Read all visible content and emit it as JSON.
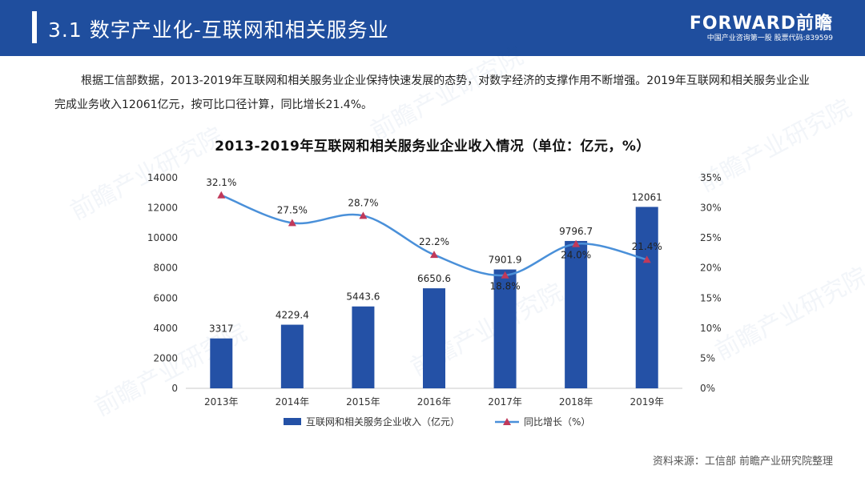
{
  "header": {
    "title": "3.1 数字产业化-互联网和相关服务业",
    "logo_main": "FORWARD前瞻",
    "logo_sub": "中国产业咨询第一股 股票代码:839599"
  },
  "intro": "根据工信部数据，2013-2019年互联网和相关服务业企业保持快速发展的态势，对数字经济的支撑作用不断增强。2019年互联网和相关服务业企业完成业务收入12061亿元，按可比口径计算，同比增长21.4%。",
  "source": "资料来源：工信部 前瞻产业研究院整理",
  "watermark": "前瞻产业研究院",
  "colors": {
    "header": "#1F4E9E",
    "bar": "#2451A6",
    "line": "#4A90D9",
    "marker": "#C0395A"
  },
  "chart_data": {
    "type": "bar",
    "title": "2013-2019年互联网和相关服务业企业收入情况（单位：亿元，%）",
    "categories": [
      "2013年",
      "2014年",
      "2015年",
      "2016年",
      "2017年",
      "2018年",
      "2019年"
    ],
    "series": [
      {
        "name": "互联网和相关服务企业收入（亿元）",
        "type": "bar",
        "axis": "left",
        "values": [
          3317,
          4229.4,
          5443.6,
          6650.6,
          7901.9,
          9796.7,
          12061
        ],
        "labels": [
          "3317",
          "4229.4",
          "5443.6",
          "6650.6",
          "7901.9",
          "9796.7",
          "12061"
        ]
      },
      {
        "name": "同比增长（%）",
        "type": "line",
        "axis": "right",
        "values": [
          32.1,
          27.5,
          28.7,
          22.2,
          18.8,
          24.0,
          21.4
        ],
        "labels": [
          "32.1%",
          "27.5%",
          "28.7%",
          "22.2%",
          "18.8%",
          "24.0%",
          "21.4%"
        ]
      }
    ],
    "y_left": {
      "min": 0,
      "max": 14000,
      "ticks": [
        "0",
        "2000",
        "4000",
        "6000",
        "8000",
        "10000",
        "12000",
        "14000"
      ]
    },
    "y_right": {
      "min": 0,
      "max": 35,
      "ticks": [
        "0%",
        "5%",
        "10%",
        "15%",
        "20%",
        "25%",
        "30%",
        "35%"
      ]
    },
    "grid": false,
    "legend": "bottom"
  }
}
